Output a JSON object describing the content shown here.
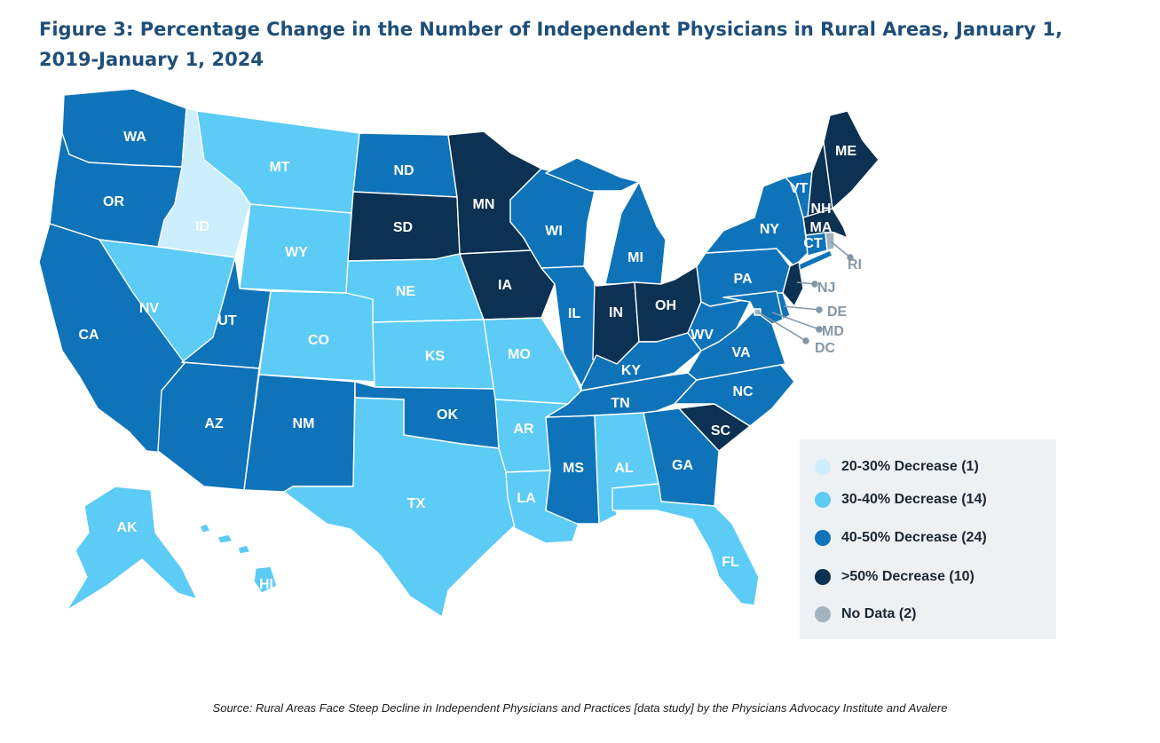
{
  "title": "Figure 3: Percentage Change in the Number of Independent Physicians in Rural Areas, January 1, 2019-January 1, 2024",
  "source": "Source: Rural Areas Face Steep Decline in Independent Physicians and Practices [data study] by the Physicians Advocacy Institute and Avalere",
  "colors": {
    "c1": "#cdeefc",
    "c2": "#5ccbf5",
    "c3": "#0f73b9",
    "c4": "#0c3152",
    "c5": "#a3b2bd"
  },
  "legend": [
    {
      "key": "c1",
      "label": "20-30% Decrease (1)"
    },
    {
      "key": "c2",
      "label": "30-40% Decrease (14)"
    },
    {
      "key": "c3",
      "label": "40-50% Decrease (24)"
    },
    {
      "key": "c4",
      "label": ">50% Decrease (10)"
    },
    {
      "key": "c5",
      "label": "No Data (2)"
    }
  ],
  "states": {
    "WA": "c3",
    "OR": "c3",
    "CA": "c3",
    "ID": "c1",
    "NV": "c2",
    "MT": "c2",
    "WY": "c2",
    "UT": "c3",
    "AZ": "c3",
    "CO": "c2",
    "NM": "c3",
    "ND": "c3",
    "SD": "c4",
    "NE": "c2",
    "KS": "c2",
    "OK": "c3",
    "TX": "c2",
    "MN": "c4",
    "IA": "c4",
    "MO": "c2",
    "AR": "c2",
    "LA": "c2",
    "WI": "c3",
    "IL": "c3",
    "MS": "c3",
    "MI": "c3",
    "IN": "c4",
    "OH": "c4",
    "KY": "c3",
    "TN": "c3",
    "AL": "c2",
    "GA": "c3",
    "FL": "c2",
    "SC": "c4",
    "NC": "c3",
    "VA": "c3",
    "WV": "c3",
    "PA": "c3",
    "NY": "c3",
    "VT": "c3",
    "NH": "c4",
    "ME": "c4",
    "MA": "c4",
    "CT": "c3",
    "RI": "c5",
    "NJ": "c4",
    "DE": "c3",
    "MD": "c3",
    "DC": "c5",
    "AK": "c2",
    "HI": "c2"
  }
}
